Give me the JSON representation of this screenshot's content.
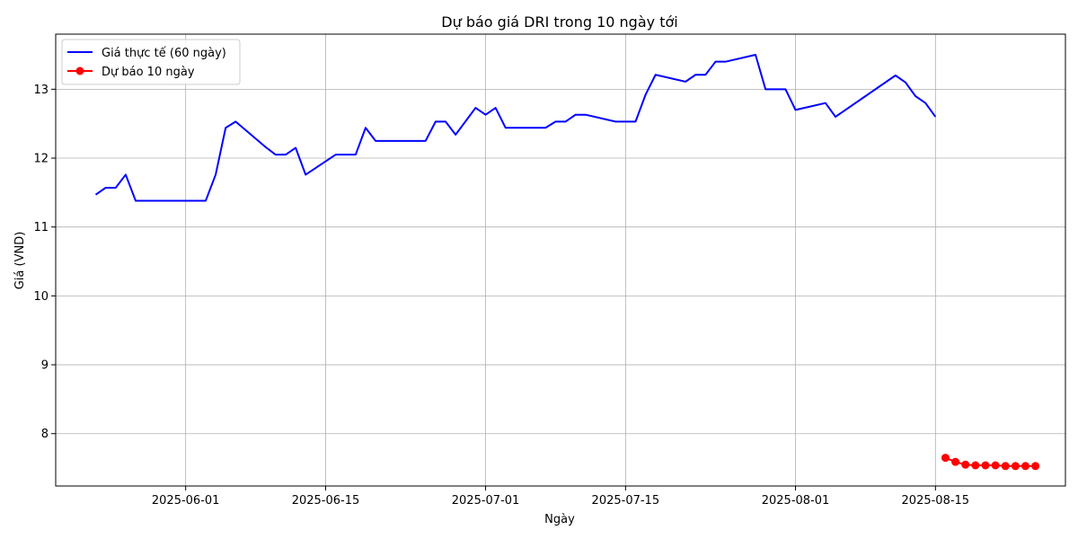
{
  "chart_data": {
    "type": "line",
    "title": "Dự báo giá DRI trong 10 ngày tới",
    "xlabel": "Ngày",
    "ylabel": "Giá (VND)",
    "xlim": [
      "2025-05-19",
      "2025-08-28"
    ],
    "ylim": [
      7.24,
      13.8
    ],
    "x_ticks": [
      "2025-06-01",
      "2025-06-15",
      "2025-07-01",
      "2025-07-15",
      "2025-08-01",
      "2025-08-15"
    ],
    "y_ticks": [
      8,
      9,
      10,
      11,
      12,
      13
    ],
    "grid": true,
    "legend_position": "top-left",
    "series": [
      {
        "name": "Giá thực tế (60 ngày)",
        "color": "#0000ff",
        "marker": "none",
        "points": [
          [
            "2025-05-23",
            11.47
          ],
          [
            "2025-05-24",
            11.57
          ],
          [
            "2025-05-25",
            11.57
          ],
          [
            "2025-05-26",
            11.76
          ],
          [
            "2025-05-27",
            11.38
          ],
          [
            "2025-05-28",
            11.38
          ],
          [
            "2025-05-29",
            11.38
          ],
          [
            "2025-05-30",
            11.38
          ],
          [
            "2025-05-31",
            11.38
          ],
          [
            "2025-06-01",
            11.38
          ],
          [
            "2025-06-02",
            11.38
          ],
          [
            "2025-06-03",
            11.38
          ],
          [
            "2025-06-04",
            11.76
          ],
          [
            "2025-06-05",
            12.44
          ],
          [
            "2025-06-06",
            12.53
          ],
          [
            "2025-06-09",
            12.16
          ],
          [
            "2025-06-10",
            12.05
          ],
          [
            "2025-06-11",
            12.05
          ],
          [
            "2025-06-12",
            12.15
          ],
          [
            "2025-06-13",
            11.76
          ],
          [
            "2025-06-16",
            12.05
          ],
          [
            "2025-06-17",
            12.05
          ],
          [
            "2025-06-18",
            12.05
          ],
          [
            "2025-06-19",
            12.44
          ],
          [
            "2025-06-20",
            12.25
          ],
          [
            "2025-06-24",
            12.25
          ],
          [
            "2025-06-25",
            12.25
          ],
          [
            "2025-06-26",
            12.53
          ],
          [
            "2025-06-27",
            12.53
          ],
          [
            "2025-06-28",
            12.34
          ],
          [
            "2025-06-30",
            12.73
          ],
          [
            "2025-07-01",
            12.63
          ],
          [
            "2025-07-02",
            12.73
          ],
          [
            "2025-07-03",
            12.44
          ],
          [
            "2025-07-07",
            12.44
          ],
          [
            "2025-07-08",
            12.53
          ],
          [
            "2025-07-09",
            12.53
          ],
          [
            "2025-07-10",
            12.63
          ],
          [
            "2025-07-11",
            12.63
          ],
          [
            "2025-07-14",
            12.53
          ],
          [
            "2025-07-15",
            12.53
          ],
          [
            "2025-07-16",
            12.53
          ],
          [
            "2025-07-17",
            12.92
          ],
          [
            "2025-07-18",
            13.21
          ],
          [
            "2025-07-21",
            13.11
          ],
          [
            "2025-07-22",
            13.21
          ],
          [
            "2025-07-23",
            13.21
          ],
          [
            "2025-07-24",
            13.4
          ],
          [
            "2025-07-25",
            13.4
          ],
          [
            "2025-07-28",
            13.5
          ],
          [
            "2025-07-29",
            13.0
          ],
          [
            "2025-07-31",
            13.0
          ],
          [
            "2025-08-01",
            12.7
          ],
          [
            "2025-08-04",
            12.8
          ],
          [
            "2025-08-05",
            12.6
          ],
          [
            "2025-08-11",
            13.2
          ],
          [
            "2025-08-12",
            13.1
          ],
          [
            "2025-08-13",
            12.9
          ],
          [
            "2025-08-14",
            12.8
          ],
          [
            "2025-08-15",
            12.6
          ]
        ]
      },
      {
        "name": "Dự báo 10 ngày",
        "color": "#ff0000",
        "marker": "circle",
        "points": [
          [
            "2025-08-16",
            7.65
          ],
          [
            "2025-08-17",
            7.59
          ],
          [
            "2025-08-18",
            7.55
          ],
          [
            "2025-08-19",
            7.54
          ],
          [
            "2025-08-20",
            7.54
          ],
          [
            "2025-08-21",
            7.54
          ],
          [
            "2025-08-22",
            7.53
          ],
          [
            "2025-08-23",
            7.53
          ],
          [
            "2025-08-24",
            7.53
          ],
          [
            "2025-08-25",
            7.53
          ]
        ]
      }
    ]
  }
}
